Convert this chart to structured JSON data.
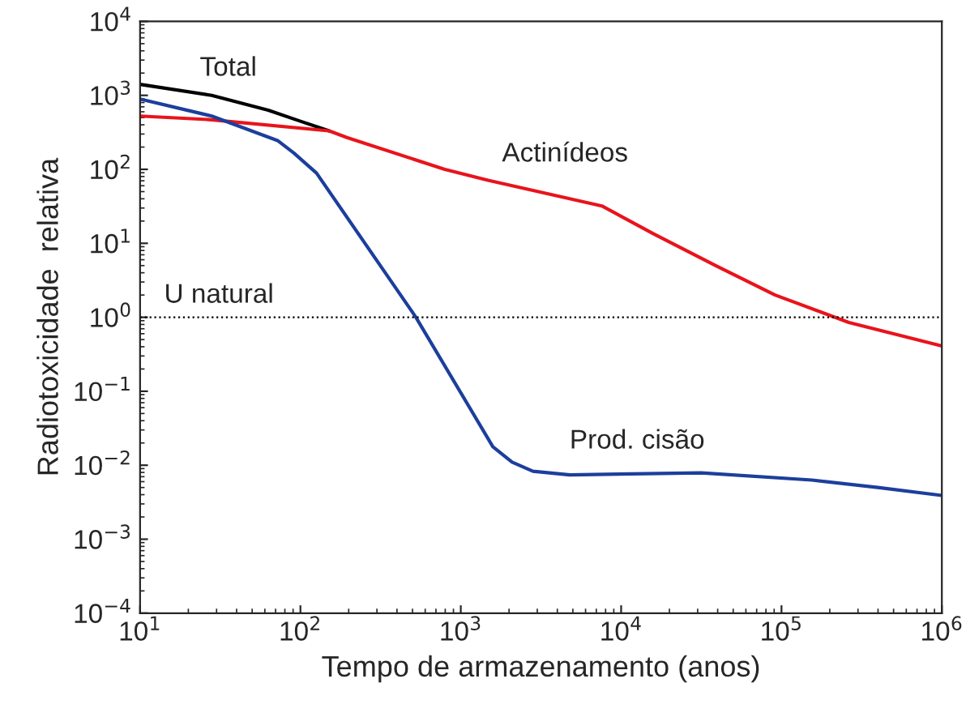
{
  "chart_data": {
    "type": "line",
    "xlabel": "Tempo de armazenamento (anos)",
    "ylabel": "Radiotoxicidade  relativa",
    "log": "xy",
    "grid": false,
    "legend": false,
    "marker": "none",
    "line_style": "solid",
    "xlim": [
      10,
      1000000
    ],
    "ylim": [
      0.0001,
      10000
    ],
    "xticks": [
      {
        "value": 10,
        "label": "10$^{1}$"
      },
      {
        "value": 100,
        "label": "10$^{2}$"
      },
      {
        "value": 1000,
        "label": "10$^{3}$"
      },
      {
        "value": 10000,
        "label": "10$^{4}$"
      },
      {
        "value": 100000,
        "label": "10$^{5}$"
      },
      {
        "value": 1000000,
        "label": "10$^{6}$"
      }
    ],
    "yticks": [
      {
        "value": 0.0001,
        "label": "10$^{−4}$"
      },
      {
        "value": 0.001,
        "label": "10$^{−3}$"
      },
      {
        "value": 0.01,
        "label": "10$^{−2}$"
      },
      {
        "value": 0.1,
        "label": "10$^{−1}$"
      },
      {
        "value": 1,
        "label": "10$^{0}$"
      },
      {
        "value": 10,
        "label": "10$^{1}$"
      },
      {
        "value": 100,
        "label": "10$^{2}$"
      },
      {
        "value": 1000,
        "label": "10$^{3}$"
      },
      {
        "value": 10000,
        "label": "10$^{4}$"
      }
    ],
    "series": [
      {
        "name": "Total",
        "color": "#000000",
        "x": [
          10,
          28,
          63,
          100,
          151
        ],
        "values": [
          1410,
          1000,
          631,
          447,
          331
        ]
      },
      {
        "name": "Actinídeos",
        "color": "#e8141c",
        "x": [
          10,
          28,
          151,
          195,
          794,
          1479,
          7586,
          15849,
          38905,
          91201,
          263027,
          1000000
        ],
        "values": [
          525,
          468,
          331,
          269,
          100,
          71,
          32,
          13.5,
          5,
          2,
          0.85,
          0.41
        ]
      },
      {
        "name": "Prod. cisão",
        "color": "#1c3f9c",
        "x": [
          10,
          28,
          72,
          91,
          126,
          525,
          1585,
          2089,
          2818,
          4786,
          31623,
          154882,
          398107,
          1000000
        ],
        "values": [
          891,
          525,
          245,
          166,
          89,
          1,
          0.0178,
          0.011,
          0.0083,
          0.0074,
          0.0079,
          0.0063,
          0.005,
          0.0039
        ]
      }
    ],
    "ref_lines": [
      {
        "axis": "y",
        "value": 1,
        "label": "U natural",
        "color": "#000000",
        "line_style": "dotted"
      }
    ]
  }
}
